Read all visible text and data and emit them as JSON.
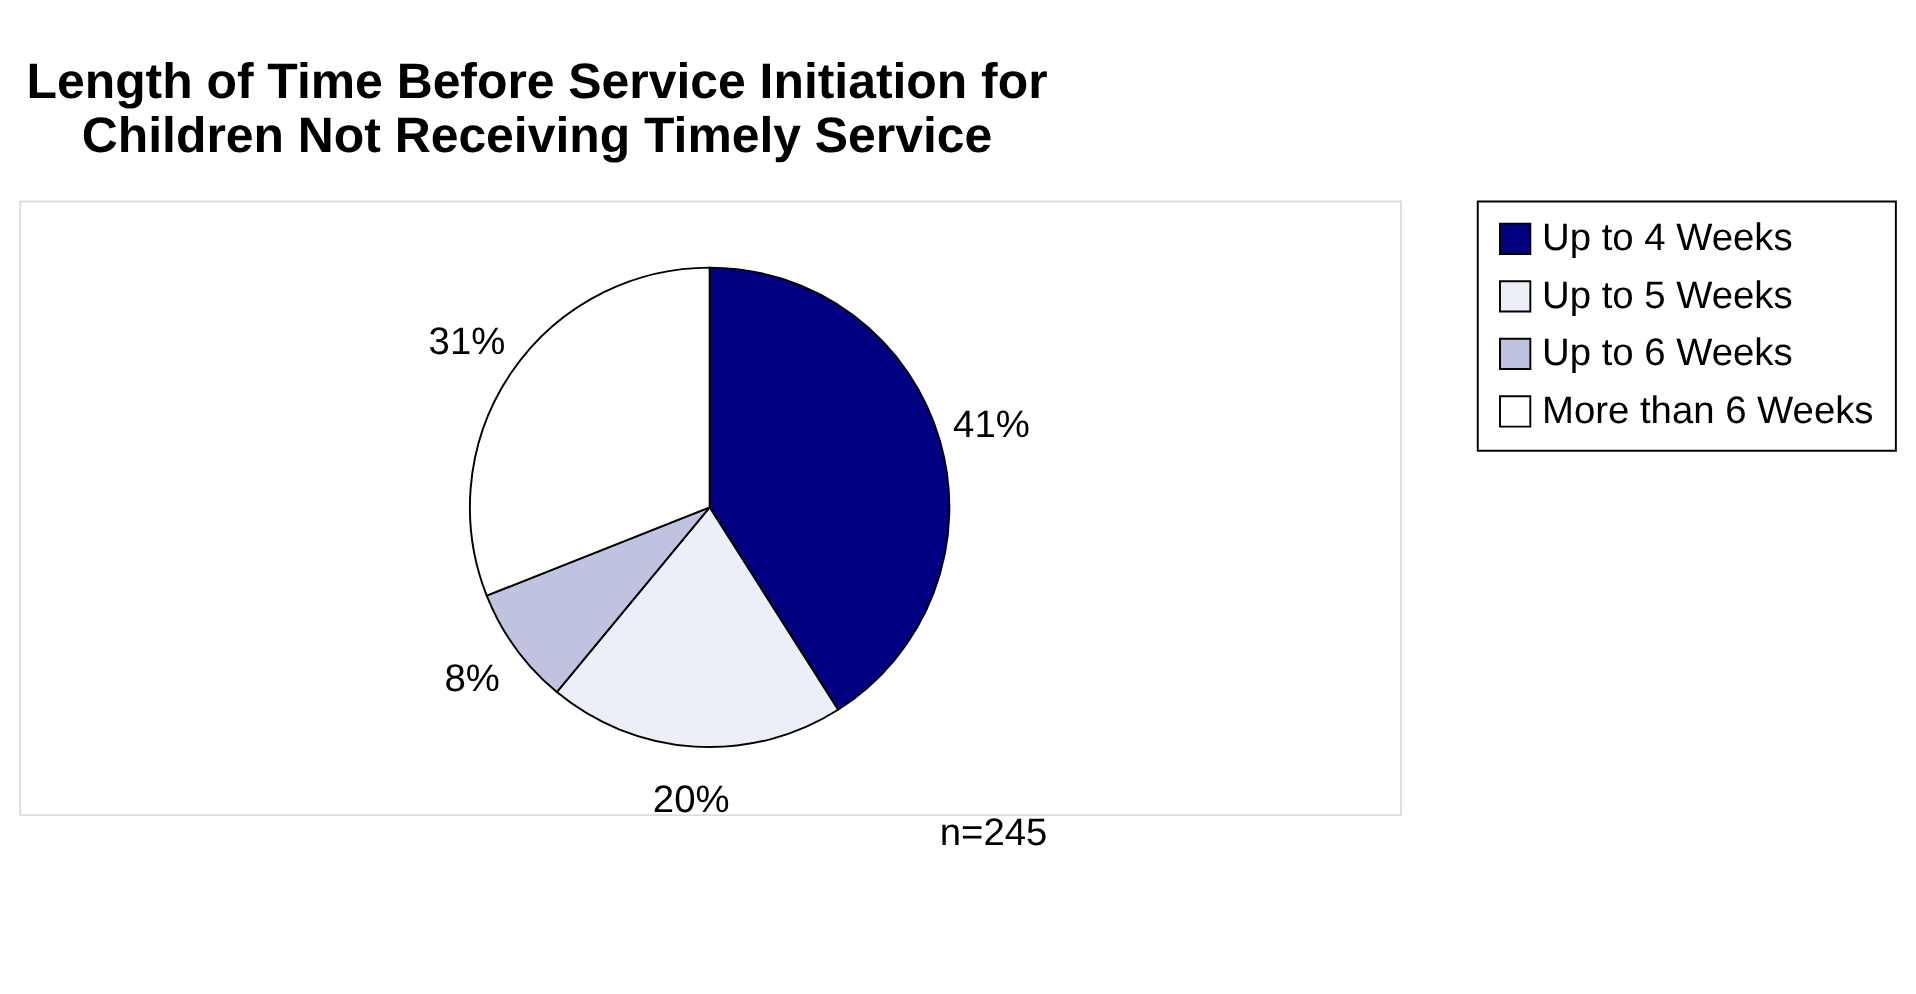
{
  "chart_data": {
    "type": "pie",
    "title": "Length of Time Before Service Initiation for\nChildren Not Receiving Timely Service",
    "categories": [
      "Up to 4 Weeks",
      "Up to 5 Weeks",
      "Up to 6 Weeks",
      "More than 6 Weeks"
    ],
    "values": [
      41,
      20,
      8,
      31
    ],
    "colors": [
      "#000080",
      "#eceef8",
      "#bfc3e0",
      "#ffffff"
    ],
    "value_labels": [
      "41%",
      "20%",
      "8%",
      "31%"
    ],
    "annotations": [
      {
        "text": "n=245"
      }
    ],
    "legend": "right"
  }
}
